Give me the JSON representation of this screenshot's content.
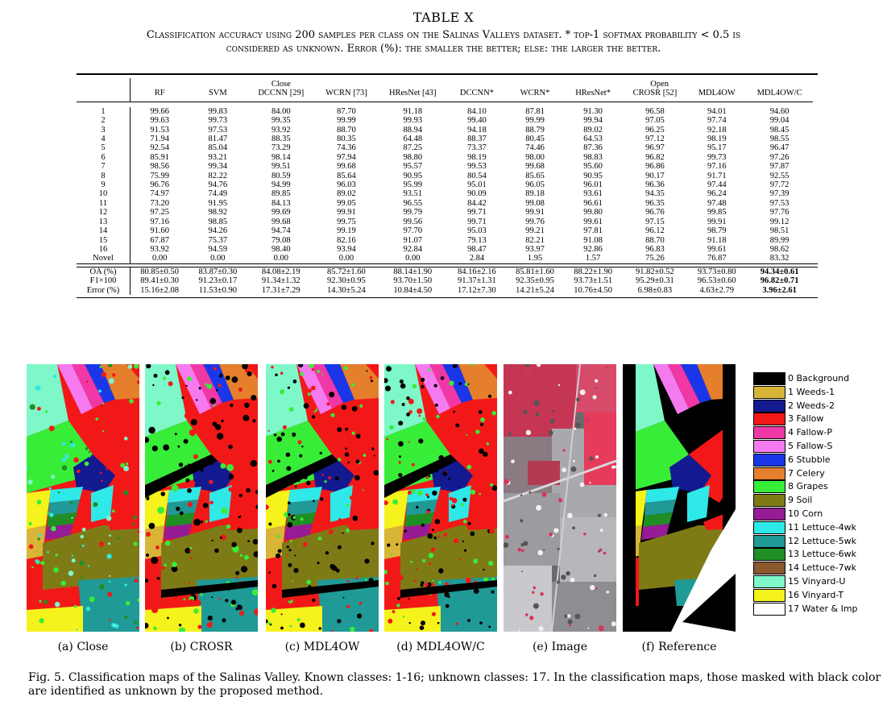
{
  "table": {
    "number": "TABLE X",
    "caption_line1": "Classification accuracy using 200 samples per class on the Salinas Valleys dataset. * top-1 softmax probability < 0.5 is",
    "caption_line2": "considered as unknown. Error (%): the smaller the better; else: the larger the better.",
    "group_close": "Close",
    "group_open": "Open",
    "columns": [
      "RF",
      "SVM",
      "DCCNN [29]",
      "WCRN [73]",
      "HResNet [43]",
      "DCCNN*",
      "WCRN*",
      "HResNet*",
      "CROSR [52]",
      "MDL4OW",
      "MDL4OW/C"
    ],
    "rows": [
      {
        "label": "1",
        "values": [
          "99.66",
          "99.83",
          "84.00",
          "87.70",
          "91.18",
          "84.10",
          "87.81",
          "91.30",
          "96.58",
          "94.01",
          "94.60"
        ]
      },
      {
        "label": "2",
        "values": [
          "99.63",
          "99.73",
          "99.35",
          "99.99",
          "99.93",
          "99.40",
          "99.99",
          "99.94",
          "97.05",
          "97.74",
          "99.04"
        ]
      },
      {
        "label": "3",
        "values": [
          "91.53",
          "97.53",
          "93.92",
          "88.70",
          "88.94",
          "94.18",
          "88.79",
          "89.02",
          "96.25",
          "92.18",
          "98.45"
        ]
      },
      {
        "label": "4",
        "values": [
          "71.94",
          "81.47",
          "88.35",
          "80.35",
          "64.48",
          "88.37",
          "80.45",
          "64.53",
          "97.12",
          "98.19",
          "98.55"
        ]
      },
      {
        "label": "5",
        "values": [
          "92.54",
          "85.04",
          "73.29",
          "74.36",
          "87.25",
          "73.37",
          "74.46",
          "87.36",
          "96.97",
          "95.17",
          "96.47"
        ]
      },
      {
        "label": "6",
        "values": [
          "85.91",
          "93.21",
          "98.14",
          "97.94",
          "98.80",
          "98.19",
          "98.00",
          "98.83",
          "96.82",
          "99.73",
          "97.26"
        ]
      },
      {
        "label": "7",
        "values": [
          "98.56",
          "99.34",
          "99.51",
          "99.68",
          "95.57",
          "99.53",
          "99.68",
          "95.60",
          "96.86",
          "97.16",
          "97.87"
        ]
      },
      {
        "label": "8",
        "values": [
          "75.99",
          "82.22",
          "80.59",
          "85.64",
          "90.95",
          "80.54",
          "85.65",
          "90.95",
          "90.17",
          "91.71",
          "92.55"
        ]
      },
      {
        "label": "9",
        "values": [
          "96.76",
          "94.76",
          "94.99",
          "96.03",
          "95.99",
          "95.01",
          "96.05",
          "96.01",
          "96.36",
          "97.44",
          "97.72"
        ]
      },
      {
        "label": "10",
        "values": [
          "74.97",
          "74.49",
          "89.85",
          "89.02",
          "93.51",
          "90.09",
          "89.18",
          "93.61",
          "94.35",
          "96.24",
          "97.39"
        ]
      },
      {
        "label": "11",
        "values": [
          "73.20",
          "91.95",
          "84.13",
          "99.05",
          "96.55",
          "84.42",
          "99.08",
          "96.61",
          "96.35",
          "97.48",
          "97.53"
        ]
      },
      {
        "label": "12",
        "values": [
          "97.25",
          "98.92",
          "99.69",
          "99.91",
          "99.79",
          "99.71",
          "99.91",
          "99.80",
          "96.76",
          "99.85",
          "97.76"
        ]
      },
      {
        "label": "13",
        "values": [
          "97.16",
          "98.85",
          "99.68",
          "99.75",
          "99.56",
          "99.71",
          "99.76",
          "99.61",
          "97.15",
          "99.91",
          "99.12"
        ]
      },
      {
        "label": "14",
        "values": [
          "91.60",
          "94.26",
          "94.74",
          "99.19",
          "97.70",
          "95.03",
          "99.21",
          "97.81",
          "96.12",
          "98.79",
          "98.51"
        ]
      },
      {
        "label": "15",
        "values": [
          "67.87",
          "75.37",
          "79.08",
          "82.16",
          "91.07",
          "79.13",
          "82.21",
          "91.08",
          "88.70",
          "91.18",
          "89.99"
        ]
      },
      {
        "label": "16",
        "values": [
          "93.92",
          "94.59",
          "98.40",
          "93.94",
          "92.84",
          "98.47",
          "93.97",
          "92.86",
          "96.83",
          "99.61",
          "98.62"
        ]
      },
      {
        "label": "Novel",
        "values": [
          "0.00",
          "0.00",
          "0.00",
          "0.00",
          "0.00",
          "2.84",
          "1.95",
          "1.57",
          "75.26",
          "76.87",
          "83.32"
        ]
      }
    ],
    "summary": [
      {
        "label": "OA (%)",
        "values": [
          "80.85±0.50",
          "83.87±0.30",
          "84.08±2.19",
          "85.72±1.60",
          "88.14±1.90",
          "84.16±2.16",
          "85.81±1.60",
          "88.22±1.90",
          "91.82±0.52",
          "93.73±0.80",
          "94.34±0.61"
        ]
      },
      {
        "label": "F1×100",
        "values": [
          "89.41±0.30",
          "91.23±0.17",
          "91.34±1.32",
          "92.30±0.95",
          "93.70±1.50",
          "91.37±1.31",
          "92.35±0.95",
          "93.73±1.51",
          "95.29±0.31",
          "96.53±0.60",
          "96.82±0.71"
        ]
      },
      {
        "label": "Error (%)",
        "values": [
          "15.16±2.08",
          "11.53±0.90",
          "17.31±7.29",
          "14.30±5.24",
          "10.84±4.50",
          "17.12±7.30",
          "14.21±5.24",
          "10.76±4.50",
          "6.98±0.83",
          "4.63±2.79",
          "3.96±2.61"
        ]
      }
    ]
  },
  "figure": {
    "panels": [
      {
        "caption": "(a) Close",
        "style": "close"
      },
      {
        "caption": "(b) CROSR",
        "style": "crosr"
      },
      {
        "caption": "(c) MDL4OW",
        "style": "mdl"
      },
      {
        "caption": "(d) MDL4OW/C",
        "style": "mdl"
      },
      {
        "caption": "(e) Image",
        "style": "image"
      },
      {
        "caption": "(f) Reference",
        "style": "ref"
      }
    ],
    "legend": [
      {
        "label": "0 Background",
        "color": "#000000"
      },
      {
        "label": "1 Weeds-1",
        "color": "#d8b437"
      },
      {
        "label": "2 Weeds-2",
        "color": "#131a8f"
      },
      {
        "label": "3 Fallow",
        "color": "#f21818"
      },
      {
        "label": "4 Fallow-P",
        "color": "#ef37a6"
      },
      {
        "label": "5 Fallow-S",
        "color": "#f57af0"
      },
      {
        "label": "6 Stubble",
        "color": "#1937e8"
      },
      {
        "label": "7 Celery",
        "color": "#e57f2c"
      },
      {
        "label": "8 Grapes",
        "color": "#38ed38"
      },
      {
        "label": "9 Soil",
        "color": "#7e7b17"
      },
      {
        "label": "10 Corn",
        "color": "#951c94"
      },
      {
        "label": "11 Lettuce-4wk",
        "color": "#2fe8e8"
      },
      {
        "label": "12 Lettuce-5wk",
        "color": "#1f9a96"
      },
      {
        "label": "13 Lettuce-6wk",
        "color": "#1f8f24"
      },
      {
        "label": "14 Lettuce-7wk",
        "color": "#8a5a2e"
      },
      {
        "label": "15 Vinyard-U",
        "color": "#7ef7c9"
      },
      {
        "label": "16 Vinyard-T",
        "color": "#f5f21c"
      },
      {
        "label": "17 Water & Imp",
        "color": "#ffffff"
      }
    ],
    "caption": "Fig. 5.  Classification maps of the Salinas Valley. Known classes: 1-16; unknown classes: 17. In the classification maps, those masked with black color are identified as unknown by the proposed method."
  }
}
